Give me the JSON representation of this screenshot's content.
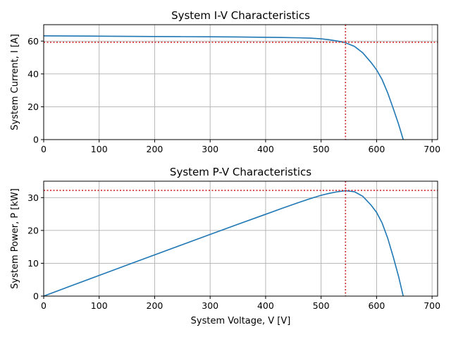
{
  "chart_data": [
    {
      "type": "line",
      "title": "System I-V Characteristics",
      "xlabel": "",
      "ylabel": "System Current, I [A]",
      "xlim": [
        0,
        710
      ],
      "ylim": [
        0,
        70
      ],
      "xticks": [
        0,
        100,
        200,
        300,
        400,
        500,
        600,
        700
      ],
      "yticks": [
        0,
        20,
        40,
        60
      ],
      "grid": true,
      "series": [
        {
          "color": "#1f77b4",
          "x": [
            0,
            50,
            100,
            150,
            200,
            250,
            300,
            350,
            400,
            430,
            460,
            480,
            500,
            515,
            530,
            544,
            560,
            575,
            590,
            600,
            610,
            620,
            630,
            640,
            648
          ],
          "y": [
            63.2,
            63.1,
            63.0,
            62.9,
            62.8,
            62.7,
            62.6,
            62.5,
            62.3,
            62.2,
            62.0,
            61.8,
            61.4,
            60.8,
            60.0,
            59.0,
            56.8,
            52.9,
            47.0,
            42.5,
            36.5,
            28.5,
            19.0,
            9.0,
            0
          ]
        }
      ],
      "markers": {
        "color": "#d62728",
        "vline_x": 544,
        "hline_y": 59.3
      }
    },
    {
      "type": "line",
      "title": "System P-V Characteristics",
      "xlabel": "System Voltage, V [V]",
      "ylabel": "System Power, P [kW]",
      "xlim": [
        0,
        710
      ],
      "ylim": [
        0,
        35
      ],
      "xticks": [
        0,
        100,
        200,
        300,
        400,
        500,
        600,
        700
      ],
      "yticks": [
        0,
        10,
        20,
        30
      ],
      "grid": true,
      "series": [
        {
          "color": "#1f77b4",
          "x": [
            0,
            50,
            100,
            150,
            200,
            250,
            300,
            350,
            400,
            430,
            460,
            480,
            500,
            515,
            530,
            544,
            560,
            575,
            590,
            600,
            610,
            620,
            630,
            640,
            648
          ],
          "y": [
            0,
            3.16,
            6.3,
            9.44,
            12.56,
            15.68,
            18.78,
            21.88,
            24.92,
            26.75,
            28.52,
            29.66,
            30.7,
            31.31,
            31.8,
            32.1,
            31.8,
            30.42,
            27.73,
            25.5,
            22.27,
            17.67,
            11.97,
            5.76,
            0
          ]
        }
      ],
      "markers": {
        "color": "#d62728",
        "vline_x": 544,
        "hline_y": 32.2
      }
    }
  ]
}
